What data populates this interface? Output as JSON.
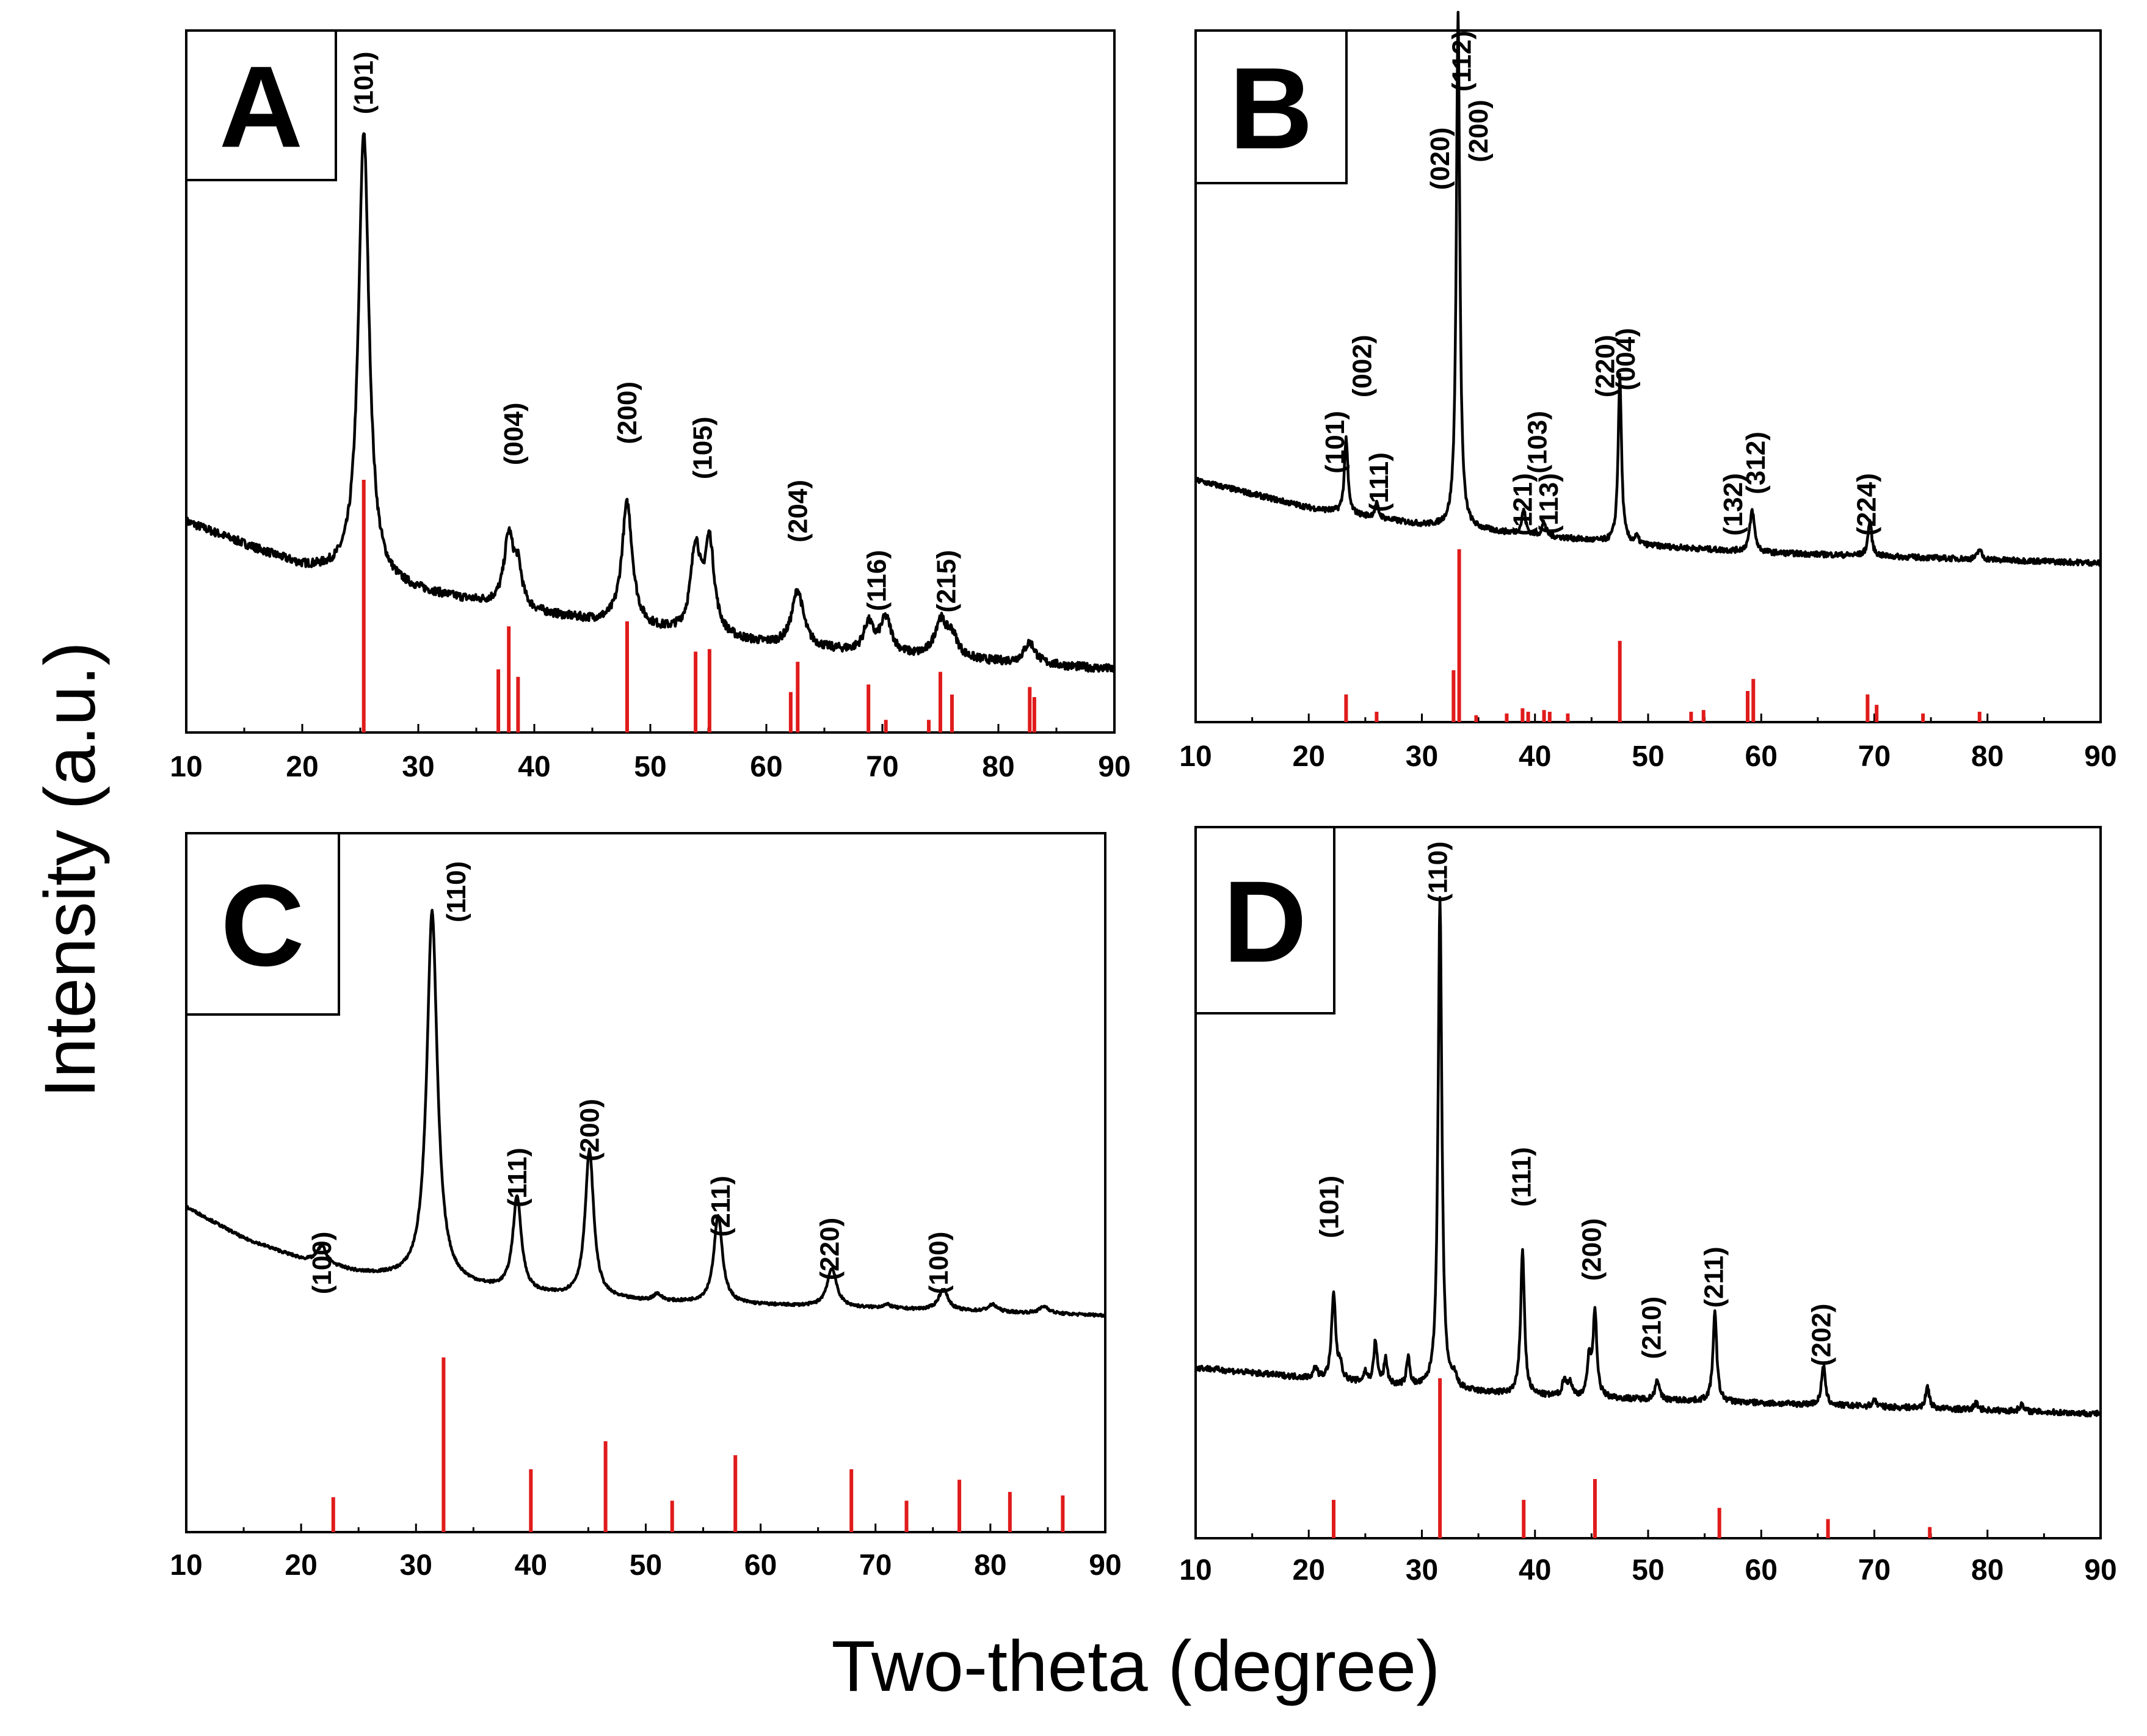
{
  "figure": {
    "ylabel": "Intensity (a.u.)",
    "xlabel": "Two-theta (degree)",
    "colors": {
      "pattern": "#000000",
      "reference": "#e01b1b",
      "frame": "#000000"
    }
  },
  "chart_data": [
    {
      "type": "line",
      "panel": "A",
      "xlim": [
        10,
        90
      ],
      "xticks": [
        "10",
        "20",
        "30",
        "40",
        "50",
        "60",
        "70",
        "80",
        "90"
      ],
      "ylabel": "Intensity (a.u.)",
      "xlabel": "Two-theta (degree)",
      "baseline": [
        [
          10,
          0.3
        ],
        [
          20,
          0.235
        ],
        [
          30,
          0.2
        ],
        [
          40,
          0.17
        ],
        [
          50,
          0.145
        ],
        [
          60,
          0.125
        ],
        [
          70,
          0.11
        ],
        [
          80,
          0.1
        ],
        [
          90,
          0.09
        ]
      ],
      "noise": 0.006,
      "peaks": [
        [
          25.3,
          0.64,
          0.55
        ],
        [
          37.8,
          0.1,
          0.5
        ],
        [
          38.6,
          0.05,
          0.4
        ],
        [
          48.0,
          0.175,
          0.55
        ],
        [
          53.9,
          0.12,
          0.5
        ],
        [
          55.1,
          0.13,
          0.5
        ],
        [
          62.7,
          0.08,
          0.6
        ],
        [
          68.8,
          0.04,
          0.5
        ],
        [
          70.3,
          0.05,
          0.6
        ],
        [
          75.0,
          0.05,
          0.6
        ],
        [
          76.0,
          0.03,
          0.6
        ],
        [
          82.7,
          0.03,
          0.6
        ]
      ],
      "labels": [
        {
          "x": 25.3,
          "text": "(101)",
          "at": 0.97
        },
        {
          "x": 38.2,
          "text": "(004)",
          "at": 0.47
        },
        {
          "x": 48.0,
          "text": "(200)",
          "at": 0.5
        },
        {
          "x": 54.5,
          "text": "(105)",
          "at": 0.45
        },
        {
          "x": 62.7,
          "text": "(204)",
          "at": 0.36
        },
        {
          "x": 69.5,
          "text": "(116)",
          "at": 0.26
        },
        {
          "x": 75.5,
          "text": "(215)",
          "at": 0.26
        }
      ],
      "reference_zone": 0.36,
      "reference": [
        [
          25.3,
          1.0
        ],
        [
          36.9,
          0.25
        ],
        [
          37.8,
          0.42
        ],
        [
          38.6,
          0.22
        ],
        [
          48.0,
          0.44
        ],
        [
          53.9,
          0.32
        ],
        [
          55.1,
          0.33
        ],
        [
          62.1,
          0.16
        ],
        [
          62.7,
          0.28
        ],
        [
          68.8,
          0.19
        ],
        [
          70.3,
          0.05
        ],
        [
          74.0,
          0.05
        ],
        [
          75.0,
          0.24
        ],
        [
          76.0,
          0.15
        ],
        [
          82.7,
          0.18
        ],
        [
          83.1,
          0.14
        ]
      ]
    },
    {
      "type": "line",
      "panel": "B",
      "xlim": [
        10,
        90
      ],
      "xticks": [
        "10",
        "20",
        "30",
        "40",
        "50",
        "60",
        "70",
        "80",
        "90"
      ],
      "ylabel": "Intensity (a.u.)",
      "xlabel": "Two-theta (degree)",
      "baseline": [
        [
          10,
          0.35
        ],
        [
          20,
          0.31
        ],
        [
          30,
          0.285
        ],
        [
          40,
          0.27
        ],
        [
          50,
          0.255
        ],
        [
          60,
          0.245
        ],
        [
          70,
          0.24
        ],
        [
          80,
          0.235
        ],
        [
          90,
          0.23
        ]
      ],
      "noise": 0.004,
      "peaks": [
        [
          23.3,
          0.11,
          0.18
        ],
        [
          26.0,
          0.02,
          0.2
        ],
        [
          33.2,
          0.75,
          0.18
        ],
        [
          39.0,
          0.035,
          0.2
        ],
        [
          40.8,
          0.02,
          0.2
        ],
        [
          47.5,
          0.24,
          0.18
        ],
        [
          49.0,
          0.01,
          0.2
        ],
        [
          59.2,
          0.06,
          0.25
        ],
        [
          69.6,
          0.05,
          0.2
        ],
        [
          79.3,
          0.015,
          0.2
        ]
      ],
      "labels": [
        {
          "x": 22.3,
          "text": "(101)",
          "at": 0.45
        },
        {
          "x": 24.7,
          "text": "(002)",
          "at": 0.56
        },
        {
          "x": 26.2,
          "text": "(111)",
          "at": 0.39
        },
        {
          "x": 31.6,
          "text": "(020)",
          "at": 0.86
        },
        {
          "x": 33.5,
          "text": "(112)",
          "at": 1.0
        },
        {
          "x": 35.0,
          "text": "(200)",
          "at": 0.9
        },
        {
          "x": 38.9,
          "text": "(121)",
          "at": 0.36
        },
        {
          "x": 40.2,
          "text": "(103)",
          "at": 0.45
        },
        {
          "x": 41.2,
          "text": "(113)",
          "at": 0.36
        },
        {
          "x": 46.2,
          "text": "(220)",
          "at": 0.56
        },
        {
          "x": 48.0,
          "text": "(004)",
          "at": 0.57
        },
        {
          "x": 57.5,
          "text": "(132)",
          "at": 0.36
        },
        {
          "x": 59.5,
          "text": "(312)",
          "at": 0.42
        },
        {
          "x": 69.3,
          "text": "(224)",
          "at": 0.36
        }
      ],
      "reference_zone": 0.25,
      "reference": [
        [
          23.3,
          0.16
        ],
        [
          26.0,
          0.06
        ],
        [
          32.8,
          0.3
        ],
        [
          33.3,
          1.0
        ],
        [
          34.8,
          0.04
        ],
        [
          37.5,
          0.05
        ],
        [
          38.9,
          0.08
        ],
        [
          39.4,
          0.06
        ],
        [
          40.8,
          0.07
        ],
        [
          41.3,
          0.06
        ],
        [
          42.9,
          0.05
        ],
        [
          47.5,
          0.47
        ],
        [
          53.8,
          0.06
        ],
        [
          54.9,
          0.07
        ],
        [
          58.8,
          0.18
        ],
        [
          59.3,
          0.25
        ],
        [
          69.4,
          0.16
        ],
        [
          70.2,
          0.1
        ],
        [
          74.3,
          0.05
        ],
        [
          79.3,
          0.06
        ]
      ]
    },
    {
      "type": "line",
      "panel": "C",
      "xlim": [
        10,
        90
      ],
      "xticks": [
        "10",
        "20",
        "30",
        "40",
        "50",
        "60",
        "70",
        "80",
        "90"
      ],
      "ylabel": "Intensity (a.u.)",
      "xlabel": "Two-theta (degree)",
      "baseline": [
        [
          10,
          0.465
        ],
        [
          15,
          0.42
        ],
        [
          20,
          0.39
        ],
        [
          25,
          0.37
        ],
        [
          30,
          0.36
        ],
        [
          40,
          0.34
        ],
        [
          50,
          0.33
        ],
        [
          60,
          0.325
        ],
        [
          70,
          0.32
        ],
        [
          80,
          0.315
        ],
        [
          90,
          0.31
        ]
      ],
      "noise": 0.002,
      "peaks": [
        [
          21.8,
          0.025,
          0.5
        ],
        [
          31.4,
          0.53,
          0.55
        ],
        [
          38.8,
          0.135,
          0.45
        ],
        [
          45.1,
          0.21,
          0.45
        ],
        [
          51.0,
          0.01,
          0.4
        ],
        [
          56.3,
          0.125,
          0.45
        ],
        [
          66.2,
          0.055,
          0.5
        ],
        [
          71.0,
          0.005,
          0.5
        ],
        [
          75.9,
          0.03,
          0.5
        ],
        [
          80.2,
          0.01,
          0.5
        ],
        [
          84.7,
          0.01,
          0.5
        ]
      ],
      "labels": [
        {
          "x": 21.8,
          "text": "(100)",
          "at": 0.43
        },
        {
          "x": 33.5,
          "text": "(110)",
          "at": 0.96
        },
        {
          "x": 38.8,
          "text": "(111)",
          "at": 0.55
        },
        {
          "x": 45.1,
          "text": "(200)",
          "at": 0.62
        },
        {
          "x": 56.5,
          "text": "(211)",
          "at": 0.51
        },
        {
          "x": 66.0,
          "text": "(220)",
          "at": 0.45
        },
        {
          "x": 75.5,
          "text": "(100)",
          "at": 0.43
        }
      ],
      "reference_zone": 0.25,
      "reference": [
        [
          22.8,
          0.2
        ],
        [
          32.4,
          1.0
        ],
        [
          40.0,
          0.36
        ],
        [
          46.5,
          0.52
        ],
        [
          52.3,
          0.18
        ],
        [
          57.8,
          0.44
        ],
        [
          67.9,
          0.36
        ],
        [
          72.7,
          0.18
        ],
        [
          77.3,
          0.3
        ],
        [
          81.7,
          0.23
        ],
        [
          86.3,
          0.21
        ]
      ]
    },
    {
      "type": "line",
      "panel": "D",
      "xlim": [
        10,
        90
      ],
      "xticks": [
        "10",
        "20",
        "30",
        "40",
        "50",
        "60",
        "70",
        "80",
        "90"
      ],
      "ylabel": "Intensity (a.u.)",
      "xlabel": "Two-theta (degree)",
      "baseline": [
        [
          10,
          0.24
        ],
        [
          20,
          0.225
        ],
        [
          30,
          0.21
        ],
        [
          40,
          0.2
        ],
        [
          50,
          0.195
        ],
        [
          60,
          0.19
        ],
        [
          70,
          0.185
        ],
        [
          80,
          0.18
        ],
        [
          90,
          0.175
        ]
      ],
      "noise": 0.004,
      "peaks": [
        [
          20.6,
          0.015,
          0.2
        ],
        [
          22.2,
          0.12,
          0.22
        ],
        [
          22.8,
          0.02,
          0.18
        ],
        [
          25.0,
          0.015,
          0.18
        ],
        [
          25.9,
          0.06,
          0.18
        ],
        [
          26.8,
          0.035,
          0.18
        ],
        [
          28.8,
          0.04,
          0.18
        ],
        [
          31.6,
          0.69,
          0.2
        ],
        [
          32.9,
          0.015,
          0.2
        ],
        [
          38.9,
          0.205,
          0.2
        ],
        [
          42.6,
          0.025,
          0.2
        ],
        [
          43.1,
          0.02,
          0.2
        ],
        [
          44.8,
          0.055,
          0.18
        ],
        [
          45.3,
          0.12,
          0.2
        ],
        [
          50.8,
          0.03,
          0.2
        ],
        [
          55.9,
          0.125,
          0.2
        ],
        [
          65.5,
          0.055,
          0.2
        ],
        [
          70.0,
          0.01,
          0.2
        ],
        [
          74.7,
          0.03,
          0.2
        ],
        [
          79.0,
          0.01,
          0.2
        ],
        [
          83.0,
          0.01,
          0.2
        ]
      ],
      "labels": [
        {
          "x": 21.8,
          "text": "(101)",
          "at": 0.51
        },
        {
          "x": 31.4,
          "text": "(110)",
          "at": 0.98
        },
        {
          "x": 38.8,
          "text": "(111)",
          "at": 0.55
        },
        {
          "x": 45.0,
          "text": "(200)",
          "at": 0.45
        },
        {
          "x": 50.3,
          "text": "(210)",
          "at": 0.34
        },
        {
          "x": 55.8,
          "text": "(211)",
          "at": 0.41
        },
        {
          "x": 65.3,
          "text": "(202)",
          "at": 0.33
        }
      ],
      "reference_zone": 0.225,
      "reference": [
        [
          22.2,
          0.24
        ],
        [
          31.6,
          1.0
        ],
        [
          39.0,
          0.24
        ],
        [
          45.3,
          0.37
        ],
        [
          56.3,
          0.19
        ],
        [
          65.9,
          0.12
        ],
        [
          74.9,
          0.07
        ]
      ]
    }
  ]
}
